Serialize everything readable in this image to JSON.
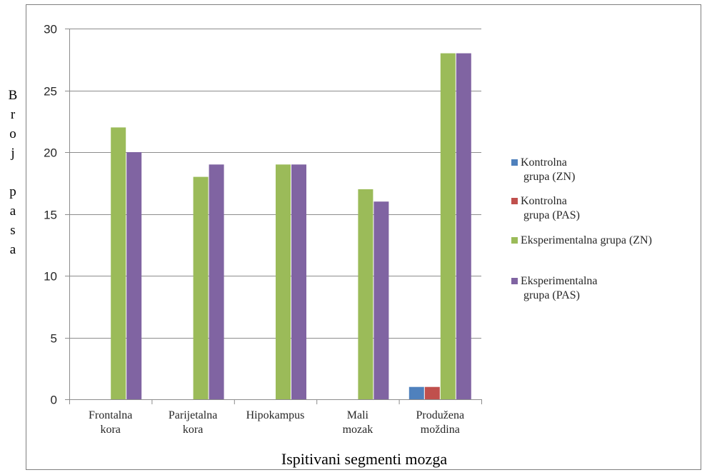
{
  "chart_data": {
    "type": "bar",
    "title": "",
    "categories": [
      [
        "Frontalna",
        "kora"
      ],
      [
        "Parijetalna",
        "kora"
      ],
      [
        "Hipokampus"
      ],
      [
        "Mali",
        "mozak"
      ],
      [
        "Produžena",
        "moždina"
      ]
    ],
    "series": [
      {
        "name": [
          "Kontrolna",
          "grupa (ZN)"
        ],
        "color": "#4f81bd",
        "values": [
          0,
          0,
          0,
          0,
          1
        ]
      },
      {
        "name": [
          "Kontrolna",
          "grupa (PAS)"
        ],
        "color": "#c0504d",
        "values": [
          0,
          0,
          0,
          0,
          1
        ]
      },
      {
        "name": [
          "Eksperimentalna grupa (ZN)"
        ],
        "color": "#9bbb59",
        "values": [
          22,
          18,
          19,
          17,
          28
        ]
      },
      {
        "name": [
          "Eksperimentalna",
          "grupa (PAS)"
        ],
        "color": "#8064a2",
        "values": [
          20,
          19,
          19,
          16,
          28
        ]
      }
    ],
    "ylabel": "Broj pasa",
    "ylabel_letters": [
      "B",
      "r",
      "o",
      "j",
      "",
      "p",
      "a",
      "s",
      "a"
    ],
    "xlabel": "Ispitivani segmenti mozga",
    "ylim": [
      0,
      30
    ],
    "yticks": [
      0,
      5,
      10,
      15,
      20,
      25,
      30
    ],
    "grid": true,
    "legend_position": "right"
  }
}
